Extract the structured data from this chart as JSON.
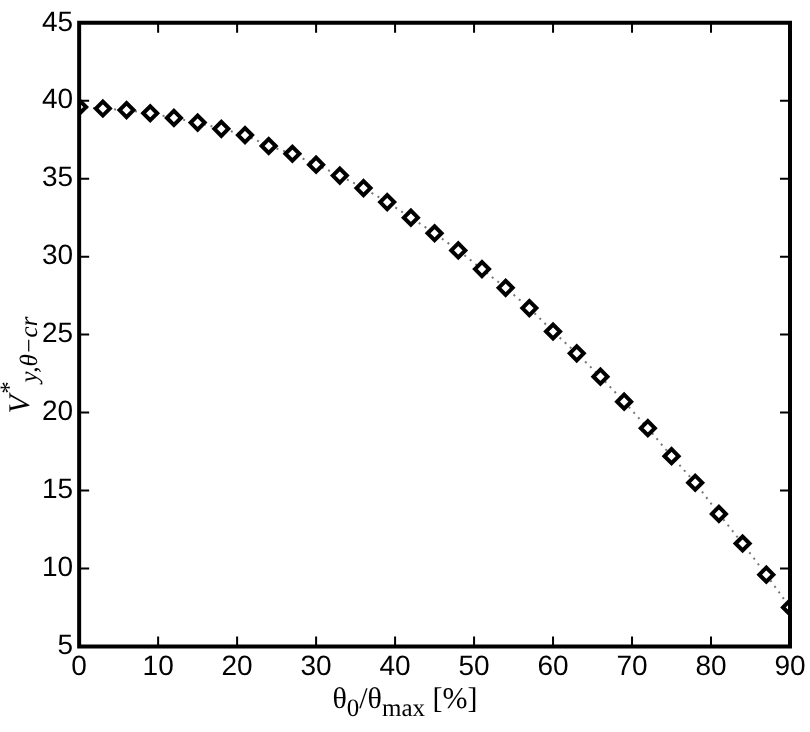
{
  "chart_data": {
    "type": "line",
    "xlabel": "θ$_{0}$/θ$_{max}$ [%]",
    "ylabel": "V$^{*}$$_{y,θ−cr}$",
    "x": [
      0,
      3,
      6,
      9,
      12,
      15,
      18,
      21,
      24,
      27,
      30,
      33,
      36,
      39,
      42,
      45,
      48,
      51,
      54,
      57,
      60,
      63,
      66,
      69,
      72,
      75,
      78,
      81,
      84,
      87,
      90
    ],
    "series": [
      {
        "color": "#000000",
        "values": [
          39.6,
          39.5,
          39.4,
          39.2,
          38.9,
          38.6,
          38.2,
          37.8,
          37.1,
          36.6,
          35.9,
          35.2,
          34.4,
          33.5,
          32.5,
          31.5,
          30.4,
          29.2,
          28.0,
          26.7,
          25.2,
          23.8,
          22.3,
          20.7,
          19.0,
          17.2,
          15.5,
          13.5,
          11.6,
          9.6,
          7.5
        ]
      }
    ],
    "xlim": [
      0,
      90
    ],
    "xticks": [
      0,
      10,
      20,
      30,
      40,
      50,
      60,
      70,
      80,
      90
    ],
    "ylim": [
      5,
      45
    ],
    "yticks": [
      5,
      10,
      15,
      20,
      25,
      30,
      35,
      40,
      45
    ],
    "grid": false,
    "legend": false,
    "marker": "diamond",
    "line_style": "dotted"
  }
}
